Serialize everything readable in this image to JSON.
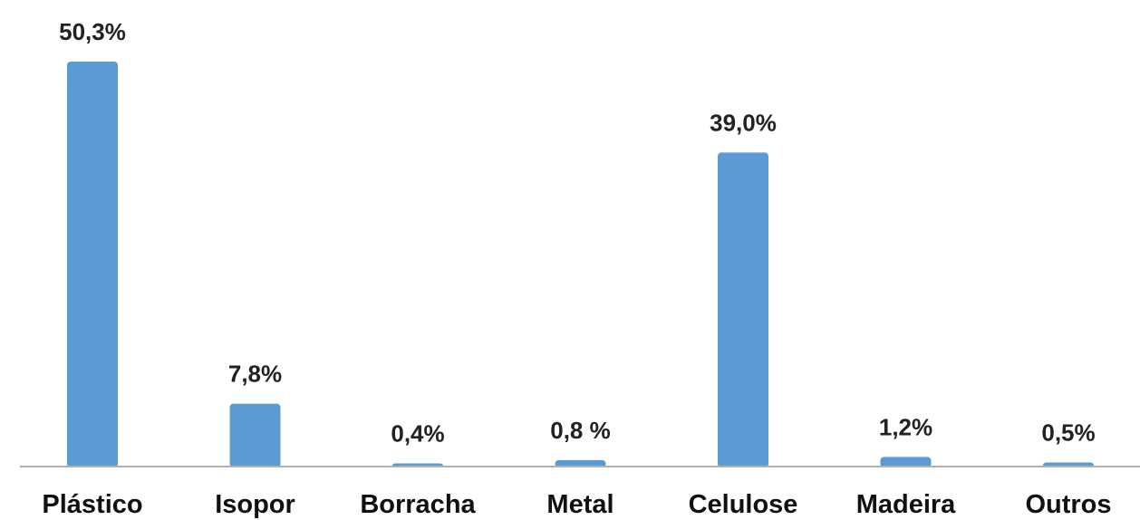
{
  "chart_data": {
    "type": "bar",
    "categories": [
      "Plástico",
      "Isopor",
      "Borracha",
      "Metal",
      "Celulose",
      "Madeira",
      "Outros"
    ],
    "values": [
      50.3,
      7.8,
      0.4,
      0.8,
      39.0,
      1.2,
      0.5
    ],
    "data_labels": [
      "50,3%",
      "7,8%",
      "0,4%",
      "0,8 %",
      "39,0%",
      "1,2%",
      "0,5%"
    ],
    "title": "",
    "xlabel": "",
    "ylabel": "",
    "ylim": [
      0,
      50.3
    ],
    "grid": false,
    "legend": "none",
    "colors": {
      "bar": "#5b9bd5",
      "axis": "#b0b0b0"
    }
  }
}
